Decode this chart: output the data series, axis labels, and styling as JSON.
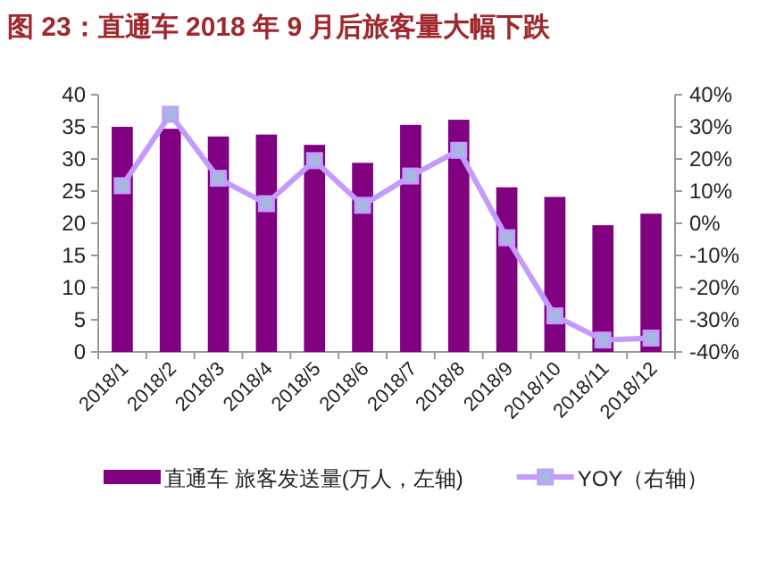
{
  "chart_data": {
    "type": "bar",
    "title": "图 23：直通车 2018 年 9 月后旅客量大幅下跌",
    "categories": [
      "2018/1",
      "2018/2",
      "2018/3",
      "2018/4",
      "2018/5",
      "2018/6",
      "2018/7",
      "2018/8",
      "2018/9",
      "2018/10",
      "2018/11",
      "2018/12"
    ],
    "series": [
      {
        "name": "直通车 旅客发送量(万人，左轴)",
        "color": "#800080",
        "values": [
          35.0,
          34.7,
          33.5,
          33.8,
          32.2,
          29.4,
          35.3,
          36.1,
          25.6,
          24.1,
          19.7,
          21.5
        ]
      },
      {
        "name": "YOY（右轴）",
        "type": "line",
        "axis": "y2",
        "color": "#c39bff",
        "values": [
          11.7,
          33.9,
          14.0,
          6.1,
          19.5,
          5.6,
          14.7,
          22.7,
          -4.5,
          -28.8,
          -36.3,
          -35.7
        ]
      }
    ],
    "ylim": [
      0,
      40
    ],
    "yticks": [
      0,
      5,
      10,
      15,
      20,
      25,
      30,
      35,
      40
    ],
    "y2lim": [
      -40,
      40
    ],
    "y2ticks": [
      {
        "value": -40,
        "label": "-40%"
      },
      {
        "value": -30,
        "label": "-30%"
      },
      {
        "value": -20,
        "label": "-20%"
      },
      {
        "value": -10,
        "label": "-10%"
      },
      {
        "value": 0,
        "label": "0%"
      },
      {
        "value": 10,
        "label": "10%"
      },
      {
        "value": 20,
        "label": "20%"
      },
      {
        "value": 30,
        "label": "30%"
      },
      {
        "value": 40,
        "label": "40%"
      }
    ],
    "legend": "bottom",
    "marker": "square"
  }
}
